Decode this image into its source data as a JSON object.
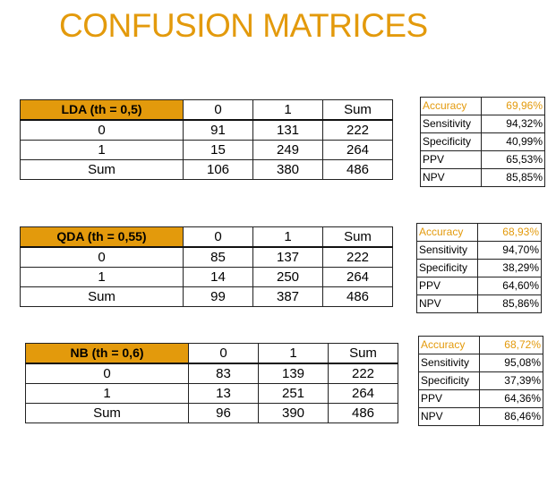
{
  "title": "CONFUSION MATRICES",
  "models": [
    {
      "header": "LDA (th = 0,5)",
      "cols": [
        "0",
        "1",
        "Sum"
      ],
      "rows": [
        {
          "label": "0",
          "values": [
            "91",
            "131",
            "222"
          ]
        },
        {
          "label": "1",
          "values": [
            "15",
            "249",
            "264"
          ]
        },
        {
          "label": "Sum",
          "values": [
            "106",
            "380",
            "486"
          ]
        }
      ],
      "metrics": [
        {
          "name": "Accuracy",
          "value": "69,96%"
        },
        {
          "name": "Sensitivity",
          "value": "94,32%"
        },
        {
          "name": "Specificity",
          "value": "40,99%"
        },
        {
          "name": "PPV",
          "value": "65,53%"
        },
        {
          "name": "NPV",
          "value": "85,85%"
        }
      ]
    },
    {
      "header": "QDA (th = 0,55)",
      "cols": [
        "0",
        "1",
        "Sum"
      ],
      "rows": [
        {
          "label": "0",
          "values": [
            "85",
            "137",
            "222"
          ]
        },
        {
          "label": "1",
          "values": [
            "14",
            "250",
            "264"
          ]
        },
        {
          "label": "Sum",
          "values": [
            "99",
            "387",
            "486"
          ]
        }
      ],
      "metrics": [
        {
          "name": "Accuracy",
          "value": "68,93%"
        },
        {
          "name": "Sensitivity",
          "value": "94,70%"
        },
        {
          "name": "Specificity",
          "value": "38,29%"
        },
        {
          "name": "PPV",
          "value": "64,60%"
        },
        {
          "name": "NPV",
          "value": "85,86%"
        }
      ]
    },
    {
      "header": "NB (th = 0,6)",
      "cols": [
        "0",
        "1",
        "Sum"
      ],
      "rows": [
        {
          "label": "0",
          "values": [
            "83",
            "139",
            "222"
          ]
        },
        {
          "label": "1",
          "values": [
            "13",
            "251",
            "264"
          ]
        },
        {
          "label": "Sum",
          "values": [
            "96",
            "390",
            "486"
          ]
        }
      ],
      "metrics": [
        {
          "name": "Accuracy",
          "value": "68,72%"
        },
        {
          "name": "Sensitivity",
          "value": "95,08%"
        },
        {
          "name": "Specificity",
          "value": "37,39%"
        },
        {
          "name": "PPV",
          "value": "64,36%"
        },
        {
          "name": "NPV",
          "value": "86,46%"
        }
      ]
    }
  ]
}
